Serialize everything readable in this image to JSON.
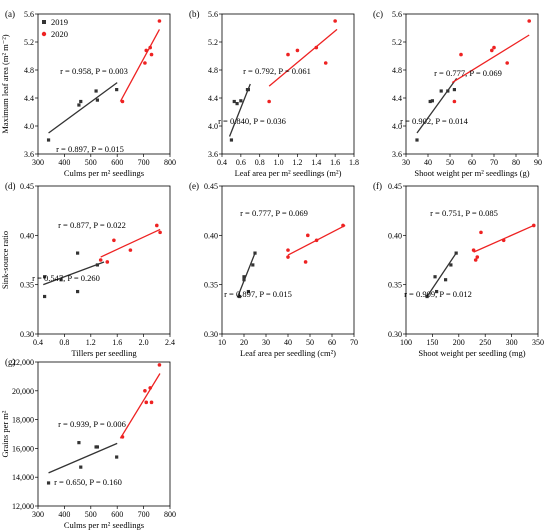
{
  "legend": [
    {
      "label": "2019",
      "color": "#333333"
    },
    {
      "label": "2020",
      "color": "#ee2222"
    }
  ],
  "y_labels": {
    "row1": "Maximum leaf area (m² m⁻²)",
    "row2": "Sink-source ratio",
    "row3": "Grains per m²"
  },
  "chart_data": [
    {
      "type": "scatter",
      "panel_label": "(a)",
      "xlabel": "Culms per m² seedlings",
      "xlim": [
        300,
        800
      ],
      "ylim": [
        3.8,
        5.6
      ],
      "xticks": [
        "300",
        "400",
        "500",
        "600",
        "700",
        "800"
      ],
      "yticks": [
        "3.6",
        "4.0",
        "4.4",
        "4.8",
        "5.2",
        "5.6"
      ],
      "series": [
        {
          "name": "2019",
          "color": "#333333",
          "points": [
            [
              340,
              3.8
            ],
            [
              455,
              4.3
            ],
            [
              462,
              4.35
            ],
            [
              520,
              4.5
            ],
            [
              525,
              4.37
            ],
            [
              598,
              4.52
            ]
          ],
          "fit": [
            [
              340,
              3.9
            ],
            [
              600,
              4.62
            ]
          ]
        },
        {
          "name": "2020",
          "color": "#ee2222",
          "points": [
            [
              620,
              4.35
            ],
            [
              705,
              4.9
            ],
            [
              710,
              5.08
            ],
            [
              725,
              5.12
            ],
            [
              730,
              5.02
            ],
            [
              760,
              5.5
            ]
          ],
          "fit": [
            [
              612,
              4.35
            ],
            [
              760,
              5.38
            ]
          ]
        }
      ],
      "annotations": [
        "r = 0.958, P = 0.003",
        "r = 0.897, P = 0.015"
      ]
    },
    {
      "type": "scatter",
      "panel_label": "(b)",
      "xlabel": "Leaf area per m² seedlings (m²)",
      "xlim": [
        0.4,
        1.8
      ],
      "ylim": [
        3.8,
        5.6
      ],
      "xticks": [
        "0.4",
        "0.6",
        "0.8",
        "1.0",
        "1.2",
        "1.4",
        "1.6",
        "1.8"
      ],
      "yticks": [
        "3.6",
        "4.0",
        "4.4",
        "4.8",
        "5.2",
        "5.6"
      ],
      "series": [
        {
          "name": "2019",
          "color": "#333333",
          "points": [
            [
              0.5,
              3.8
            ],
            [
              0.53,
              4.35
            ],
            [
              0.56,
              4.32
            ],
            [
              0.6,
              4.36
            ],
            [
              0.67,
              4.52
            ],
            [
              0.68,
              4.52
            ]
          ],
          "fit": [
            [
              0.48,
              3.85
            ],
            [
              0.7,
              4.6
            ]
          ]
        },
        {
          "name": "2020",
          "color": "#ee2222",
          "points": [
            [
              0.9,
              4.35
            ],
            [
              1.1,
              5.02
            ],
            [
              1.2,
              5.08
            ],
            [
              1.4,
              5.12
            ],
            [
              1.5,
              4.9
            ],
            [
              1.6,
              5.5
            ]
          ],
          "fit": [
            [
              0.9,
              4.57
            ],
            [
              1.62,
              5.38
            ]
          ]
        }
      ],
      "annotations": [
        "r = 0.792, P = 0.061",
        "r = 0.840, P = 0.036"
      ]
    },
    {
      "type": "scatter",
      "panel_label": "(c)",
      "xlabel": "Shoot weight per m² seedlings (g)",
      "xlim": [
        30,
        90
      ],
      "ylim": [
        3.8,
        5.6
      ],
      "xticks": [
        "30",
        "40",
        "50",
        "60",
        "70",
        "80",
        "90"
      ],
      "yticks": [
        "3.6",
        "4.0",
        "4.4",
        "4.8",
        "5.2",
        "5.6"
      ],
      "series": [
        {
          "name": "2019",
          "color": "#333333",
          "points": [
            [
              35,
              3.8
            ],
            [
              41,
              4.35
            ],
            [
              42,
              4.36
            ],
            [
              46,
              4.5
            ],
            [
              49,
              4.5
            ],
            [
              52,
              4.52
            ]
          ],
          "fit": [
            [
              35,
              3.9
            ],
            [
              53,
              4.68
            ]
          ]
        },
        {
          "name": "2020",
          "color": "#ee2222",
          "points": [
            [
              52,
              4.35
            ],
            [
              55,
              5.02
            ],
            [
              69,
              5.08
            ],
            [
              70,
              5.12
            ],
            [
              76,
              4.9
            ],
            [
              86,
              5.5
            ]
          ],
          "fit": [
            [
              51,
              4.62
            ],
            [
              86,
              5.3
            ]
          ]
        }
      ],
      "annotations": [
        "r = 0.777, P = 0.069",
        "r = 0.902, P = 0.014"
      ]
    },
    {
      "type": "scatter",
      "panel_label": "(d)",
      "xlabel": "Tillers per  seedling",
      "xlim": [
        0.4,
        2.4
      ],
      "ylim": [
        0.3,
        0.45
      ],
      "xticks": [
        "0.4",
        "0.8",
        "1.2",
        "1.6",
        "2.0",
        "2.4"
      ],
      "yticks": [
        "0.30",
        "0.35",
        "0.40",
        "0.45"
      ],
      "series": [
        {
          "name": "2019",
          "color": "#333333",
          "points": [
            [
              0.5,
              0.338
            ],
            [
              0.5,
              0.358
            ],
            [
              0.75,
              0.355
            ],
            [
              1.0,
              0.382
            ],
            [
              1.0,
              0.343
            ],
            [
              1.3,
              0.37
            ]
          ],
          "fit": [
            [
              0.48,
              0.35
            ],
            [
              1.4,
              0.373
            ]
          ]
        },
        {
          "name": "2020",
          "color": "#ee2222",
          "points": [
            [
              1.35,
              0.375
            ],
            [
              1.45,
              0.373
            ],
            [
              1.55,
              0.395
            ],
            [
              1.8,
              0.385
            ],
            [
              2.2,
              0.41
            ],
            [
              2.25,
              0.403
            ]
          ],
          "fit": [
            [
              1.35,
              0.378
            ],
            [
              2.25,
              0.406
            ]
          ]
        }
      ],
      "annotations": [
        "r = 0.877, P = 0.022",
        "r = 0.547, P = 0.260"
      ]
    },
    {
      "type": "scatter",
      "panel_label": "(e)",
      "xlabel": "Leaf area per seedling (cm²)",
      "xlim": [
        10,
        70
      ],
      "ylim": [
        0.3,
        0.45
      ],
      "xticks": [
        "10",
        "20",
        "30",
        "40",
        "50",
        "60",
        "70"
      ],
      "yticks": [
        "0.30",
        "0.35",
        "0.40",
        "0.45"
      ],
      "series": [
        {
          "name": "2019",
          "color": "#333333",
          "points": [
            [
              18,
              0.338
            ],
            [
              20,
              0.358
            ],
            [
              20,
              0.355
            ],
            [
              22,
              0.343
            ],
            [
              24,
              0.37
            ],
            [
              25,
              0.382
            ]
          ],
          "fit": [
            [
              17,
              0.337
            ],
            [
              25,
              0.382
            ]
          ]
        },
        {
          "name": "2020",
          "color": "#ee2222",
          "points": [
            [
              40,
              0.378
            ],
            [
              40,
              0.385
            ],
            [
              48,
              0.373
            ],
            [
              49,
              0.4
            ],
            [
              53,
              0.395
            ],
            [
              65,
              0.41
            ]
          ],
          "fit": [
            [
              40,
              0.38
            ],
            [
              66,
              0.41
            ]
          ]
        }
      ],
      "annotations": [
        "r = 0.777, P = 0.069",
        "r = 0.897, P = 0.015"
      ]
    },
    {
      "type": "scatter",
      "panel_label": "(f)",
      "xlabel": "Shoot weight per seedling (mg)",
      "xlim": [
        100,
        350
      ],
      "ylim": [
        0.3,
        0.45
      ],
      "xticks": [
        "100",
        "150",
        "200",
        "250",
        "300",
        "350"
      ],
      "yticks": [
        "0.30",
        "0.35",
        "0.40",
        "0.45"
      ],
      "series": [
        {
          "name": "2019",
          "color": "#333333",
          "points": [
            [
              140,
              0.338
            ],
            [
              155,
              0.358
            ],
            [
              158,
              0.343
            ],
            [
              175,
              0.355
            ],
            [
              185,
              0.37
            ],
            [
              195,
              0.382
            ]
          ],
          "fit": [
            [
              140,
              0.338
            ],
            [
              195,
              0.382
            ]
          ]
        },
        {
          "name": "2020",
          "color": "#ee2222",
          "points": [
            [
              228,
              0.385
            ],
            [
              232,
              0.375
            ],
            [
              235,
              0.378
            ],
            [
              242,
              0.403
            ],
            [
              285,
              0.395
            ],
            [
              342,
              0.41
            ]
          ],
          "fit": [
            [
              228,
              0.383
            ],
            [
              342,
              0.41
            ]
          ]
        }
      ],
      "annotations": [
        "r = 0.751, P = 0.085",
        "r = 0.909, P = 0.012"
      ]
    },
    {
      "type": "scatter",
      "panel_label": "(g)",
      "xlabel": "Culms per m² seedlings",
      "xlim": [
        300,
        800
      ],
      "ylim": [
        12000,
        22000
      ],
      "xticks": [
        "300",
        "400",
        "500",
        "600",
        "700",
        "800"
      ],
      "yticks": [
        "12,000",
        "14,000",
        "16,000",
        "18,000",
        "20,000",
        "22,000"
      ],
      "series": [
        {
          "name": "2019",
          "color": "#333333",
          "points": [
            [
              340,
              13600
            ],
            [
              455,
              16400
            ],
            [
              462,
              14700
            ],
            [
              520,
              16100
            ],
            [
              525,
              16100
            ],
            [
              598,
              15400
            ]
          ],
          "fit": [
            [
              340,
              14300
            ],
            [
              600,
              16350
            ]
          ]
        },
        {
          "name": "2020",
          "color": "#ee2222",
          "points": [
            [
              620,
              16800
            ],
            [
              705,
              20000
            ],
            [
              710,
              19200
            ],
            [
              725,
              20200
            ],
            [
              730,
              19200
            ],
            [
              760,
              21800
            ]
          ],
          "fit": [
            [
              612,
              16700
            ],
            [
              762,
              21200
            ]
          ]
        }
      ],
      "annotations": [
        "r = 0.939, P = 0.006",
        "r = 0.650, P = 0.160"
      ]
    }
  ]
}
